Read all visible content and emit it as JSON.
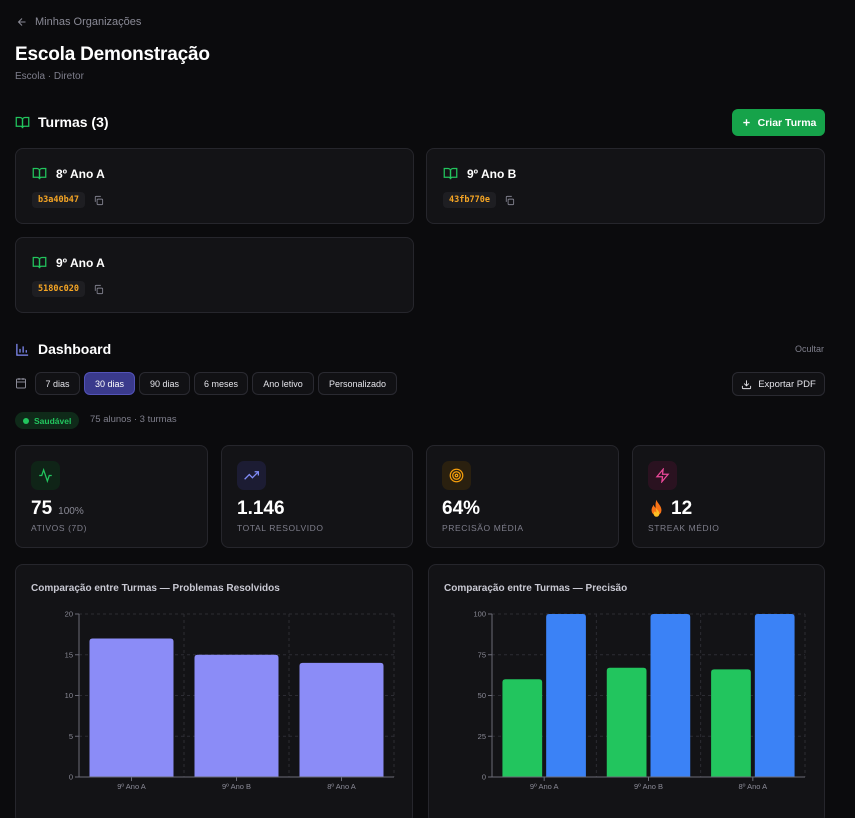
{
  "nav": {
    "back_label": "Minhas Organizações"
  },
  "org": {
    "name": "Escola Demonstração",
    "subtitle": "Escola · Diretor"
  },
  "turmas": {
    "title": "Turmas (3)",
    "create_label": "Criar Turma",
    "items": [
      {
        "name": "8º Ano A",
        "code": "b3a40b47"
      },
      {
        "name": "9º Ano B",
        "code": "43fb770e"
      },
      {
        "name": "9º Ano A",
        "code": "5180c020"
      }
    ]
  },
  "dashboard": {
    "title": "Dashboard",
    "hide_label": "Ocultar",
    "filters": [
      "7 dias",
      "30 dias",
      "90 dias",
      "6 meses",
      "Ano letivo",
      "Personalizado"
    ],
    "active_filter": "30 dias",
    "export_label": "Exportar PDF",
    "status_badge": "Saudável",
    "meta": "75 alunos · 3 turmas",
    "stats": [
      {
        "icon": "activity-icon",
        "value": "75",
        "sub": "100%",
        "label": "ATIVOS (7D)",
        "color": "#22c55e",
        "bg": "#0f2417"
      },
      {
        "icon": "trending-up-icon",
        "value": "1.146",
        "sub": "",
        "label": "TOTAL RESOLVIDO",
        "color": "#818cf8",
        "bg": "#1c1c33"
      },
      {
        "icon": "target-icon",
        "value": "64%",
        "sub": "",
        "label": "PRECISÃO MÉDIA",
        "color": "#f59e0b",
        "bg": "#2a200f"
      },
      {
        "icon": "zap-icon",
        "value": "12",
        "sub": "",
        "label": "STREAK MÉDIO",
        "color": "#ec4899",
        "bg": "#2a1220",
        "prefix_icon": "fire-icon"
      }
    ]
  },
  "chart_data": [
    {
      "type": "bar",
      "title": "Comparação entre Turmas — Problemas Resolvidos",
      "categories": [
        "9º Ano A",
        "9º Ano B",
        "8º Ano A"
      ],
      "series": [
        {
          "values": [
            17,
            15,
            14
          ],
          "color": "#8b8cf7"
        }
      ],
      "ylim": [
        0,
        20
      ],
      "yticks": [
        0,
        5,
        10,
        15,
        20
      ],
      "grid": true
    },
    {
      "type": "bar",
      "title": "Comparação entre Turmas — Precisão",
      "categories": [
        "9º Ano A",
        "9º Ano B",
        "8º Ano A"
      ],
      "series": [
        {
          "values": [
            60,
            67,
            66
          ],
          "color": "#22c55e"
        },
        {
          "values": [
            100,
            100,
            100
          ],
          "color": "#3b82f6"
        }
      ],
      "ylim": [
        0,
        100
      ],
      "yticks": [
        0,
        25,
        50,
        75,
        100
      ],
      "grid": true
    }
  ]
}
